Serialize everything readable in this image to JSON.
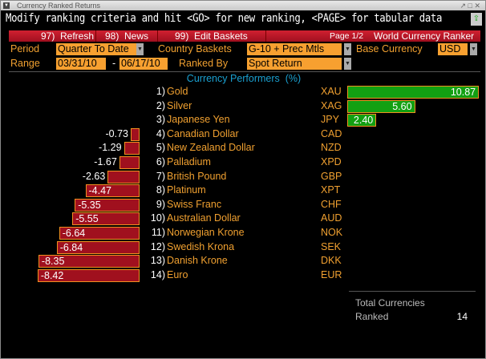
{
  "window": {
    "title": "Currency Ranked Returns",
    "controls": "↗ □ ✕"
  },
  "message": "Modify ranking criteria and hit <GO> for new ranking, <PAGE> for tabular data",
  "menu": {
    "refresh": "97)  Refresh",
    "news": "98)  News",
    "edit": "99)  Edit Baskets",
    "page": "Page 1/2",
    "app": "World Currency Ranker"
  },
  "params": {
    "period_label": "Period",
    "period": "Quarter To Date",
    "baskets_label": "Country Baskets",
    "baskets": "G-10 + Prec Mtls",
    "base_label": "Base Currency",
    "base": "USD",
    "range_label": "Range",
    "range_from": "03/31/10",
    "range_dash": "-",
    "range_to": "06/17/10",
    "ranked_label": "Ranked By",
    "ranked": "Spot Return"
  },
  "header": "Currency Performers  (%)",
  "colors": {
    "positive": "#12a012",
    "negative": "#a0101e",
    "accent": "#f7a030"
  },
  "rows": [
    {
      "rank": "1)",
      "name": "Gold",
      "code": "XAU",
      "value": 10.87
    },
    {
      "rank": "2)",
      "name": "Silver",
      "code": "XAG",
      "value": 5.6
    },
    {
      "rank": "3)",
      "name": "Japanese Yen",
      "code": "JPY",
      "value": 2.4
    },
    {
      "rank": "4)",
      "name": "Canadian Dollar",
      "code": "CAD",
      "value": -0.73
    },
    {
      "rank": "5)",
      "name": "New Zealand Dollar",
      "code": "NZD",
      "value": -1.29
    },
    {
      "rank": "6)",
      "name": "Palladium",
      "code": "XPD",
      "value": -1.67
    },
    {
      "rank": "7)",
      "name": "British Pound",
      "code": "GBP",
      "value": -2.63
    },
    {
      "rank": "8)",
      "name": "Platinum",
      "code": "XPT",
      "value": -4.47
    },
    {
      "rank": "9)",
      "name": "Swiss Franc",
      "code": "CHF",
      "value": -5.35
    },
    {
      "rank": "10)",
      "name": "Australian Dollar",
      "code": "AUD",
      "value": -5.55
    },
    {
      "rank": "11)",
      "name": "Norwegian Krone",
      "code": "NOK",
      "value": -6.64
    },
    {
      "rank": "12)",
      "name": "Swedish Krona",
      "code": "SEK",
      "value": -6.84
    },
    {
      "rank": "13)",
      "name": "Danish Krone",
      "code": "DKK",
      "value": -8.35
    },
    {
      "rank": "14)",
      "name": "Euro",
      "code": "EUR",
      "value": -8.42
    }
  ],
  "summary": {
    "line1": "Total Currencies",
    "line2": "Ranked",
    "count": "14"
  }
}
